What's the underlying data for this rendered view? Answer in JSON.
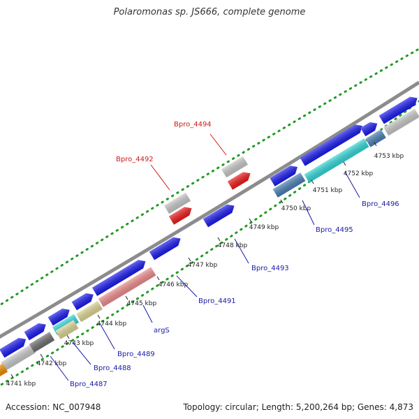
{
  "title": "Polaromonas sp. JS666, complete genome",
  "footer": {
    "accession": "Accession: NC_007948",
    "summary": "Topology: circular; Length: 5,200,264 bp; Genes: 4,873"
  },
  "colors": {
    "blue": "#1a1aee",
    "light_gray": "#c8c8c8",
    "dark_gray": "#6e6e6e",
    "red": "#ee1a1a",
    "cyan": "#33d6d6",
    "steel_blue": "#4a7fb5",
    "pink": "#ee8c8c",
    "khaki": "#ddd595",
    "orange": "#f08c00",
    "green": "#229922",
    "backbone": "#8c8c8c",
    "label_blue": "#1a1aaa",
    "label_red": "#cc1a1a"
  },
  "kbp_ticks": [
    "4741 kbp",
    "4742 kbp",
    "4743 kbp",
    "4744 kbp",
    "4745 kbp",
    "4746 kbp",
    "4747 kbp",
    "4748 kbp",
    "4749 kbp",
    "4750 kbp",
    "4751 kbp",
    "4752 kbp",
    "4753 kbp"
  ],
  "gene_labels": [
    {
      "text": "Bpro_4487",
      "color": "label_blue"
    },
    {
      "text": "Bpro_4488",
      "color": "label_blue"
    },
    {
      "text": "Bpro_4489",
      "color": "label_blue"
    },
    {
      "text": "argS",
      "color": "label_blue"
    },
    {
      "text": "Bpro_4491",
      "color": "label_blue"
    },
    {
      "text": "Bpro_4492",
      "color": "label_red"
    },
    {
      "text": "Bpro_4493",
      "color": "label_blue"
    },
    {
      "text": "Bpro_4494",
      "color": "label_red"
    },
    {
      "text": "Bpro_4495",
      "color": "label_blue"
    },
    {
      "text": "Bpro_4496",
      "color": "label_blue"
    }
  ]
}
